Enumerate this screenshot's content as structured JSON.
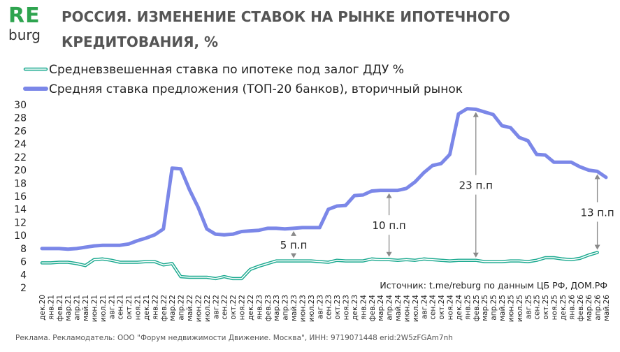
{
  "logo": {
    "line1": "RE",
    "line2": "burg"
  },
  "header": {
    "title": "РОССИЯ. ИЗМЕНЕНИЕ СТАВОК НА РЫНКЕ ИПОТЕЧНОГО КРЕДИТОВАНИЯ, %"
  },
  "footer": {
    "source": "Источник: t.me/reburg по данным ЦБ РФ, ДОМ.РФ",
    "ad": "Реклама. Рекламодатель: ООО \"Форум недвижимости Движение. Москва\", ИНН: 9719071448 erid:2W5zFGAm7nh"
  },
  "colors": {
    "series1": "#1aa98f",
    "series2": "#7b87e8",
    "arrow": "#8a8a8a",
    "logo": "#2ea44f"
  },
  "chart_data": {
    "type": "line",
    "title": "РОССИЯ. ИЗМЕНЕНИЕ СТАВОК НА РЫНКЕ ИПОТЕЧНОГО КРЕДИТОВАНИЯ, %",
    "xlabel": "",
    "ylabel": "",
    "ylim": [
      2,
      30
    ],
    "yticks": [
      2,
      4,
      6,
      8,
      10,
      12,
      14,
      16,
      18,
      20,
      22,
      24,
      26,
      28,
      30
    ],
    "grid": false,
    "legend": "top-left",
    "categories": [
      "дек.20",
      "янв.21",
      "фев.21",
      "мар.21",
      "апр.21",
      "май.21",
      "июн.21",
      "июл.21",
      "авг.21",
      "сен.21",
      "окт.21",
      "ноя.21",
      "дек.21",
      "янв.22",
      "фев.22",
      "мар.22",
      "апр.22",
      "май.22",
      "июн.22",
      "июл.22",
      "авг.22",
      "сен.22",
      "окт.22",
      "ноя.22",
      "дек.22",
      "янв.23",
      "фев.23",
      "мар.23",
      "апр.23",
      "май.23",
      "июн.23",
      "июл.23",
      "авг.23",
      "сен.23",
      "окт.23",
      "ноя.23",
      "дек.23",
      "янв.24",
      "фев.24",
      "мар.24",
      "апр.24",
      "май.24",
      "июн.24",
      "июл.24",
      "авг.24",
      "сен.24",
      "окт.24",
      "ноя.24",
      "дек.24",
      "янв.25",
      "фев.25",
      "мар.25",
      "апр.25",
      "май.25",
      "июн.25",
      "июл.25",
      "авг.25",
      "сен.25",
      "окт.25",
      "ноя.25",
      "дек.25",
      "янв.26",
      "фев.26",
      "мар.26",
      "апр.26",
      "май.26"
    ],
    "series": [
      {
        "name": "Средневзвешенная ставка по ипотеке под залог ДДУ %",
        "values": [
          5.8,
          5.8,
          5.9,
          5.9,
          5.7,
          5.4,
          6.3,
          6.4,
          6.2,
          5.9,
          5.9,
          5.9,
          6.0,
          6.0,
          5.5,
          5.7,
          3.7,
          3.6,
          3.6,
          3.6,
          3.4,
          3.7,
          3.4,
          3.4,
          4.8,
          5.3,
          5.7,
          6.1,
          6.1,
          6.1,
          6.1,
          6.1,
          6.0,
          5.9,
          6.2,
          6.1,
          6.1,
          6.1,
          6.4,
          6.3,
          6.3,
          6.2,
          6.3,
          6.2,
          6.4,
          6.3,
          6.2,
          6.1,
          6.2,
          6.2,
          6.2,
          6.0,
          6.0,
          6.0,
          6.1,
          6.1,
          6.0,
          6.2,
          6.6,
          6.6,
          6.4,
          6.3,
          6.5,
          7.0,
          7.4,
          null
        ],
        "style": "outline"
      },
      {
        "name": "Средняя ставка предложения (ТОП-20 банков), вторичный рынок",
        "values": [
          8.0,
          8.0,
          8.0,
          7.9,
          8.0,
          8.2,
          8.4,
          8.5,
          8.5,
          8.5,
          8.7,
          9.2,
          9.6,
          10.1,
          11.0,
          20.3,
          20.2,
          17.0,
          14.3,
          11.0,
          10.2,
          10.1,
          10.2,
          10.6,
          10.7,
          10.8,
          11.1,
          11.1,
          11.0,
          11.1,
          11.2,
          11.2,
          11.2,
          14.0,
          14.5,
          14.6,
          16.1,
          16.2,
          16.8,
          16.9,
          16.9,
          16.9,
          17.2,
          18.2,
          19.6,
          20.7,
          21.0,
          22.4,
          28.6,
          29.4,
          29.3,
          28.9,
          28.5,
          26.8,
          26.5,
          25.0,
          24.5,
          22.4,
          22.3,
          21.2,
          21.2,
          21.2,
          20.5,
          20.0,
          19.8,
          18.9
        ],
        "style": "solid"
      }
    ],
    "annotations": [
      {
        "label": "5 п.п",
        "index": 29
      },
      {
        "label": "10 п.п",
        "index": 40
      },
      {
        "label": "23 п.п",
        "index": 50
      },
      {
        "label": "13 п.п",
        "index": 64
      }
    ]
  }
}
